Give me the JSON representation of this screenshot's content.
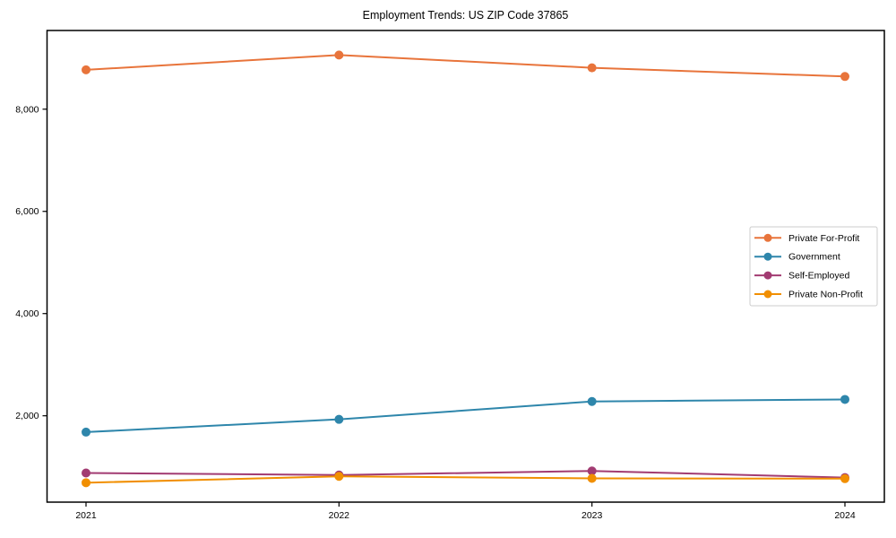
{
  "page": {
    "background": "#ffffff"
  },
  "chart_data": {
    "type": "line",
    "title": "Employment Trends: US ZIP Code 37865",
    "xlabel": "",
    "ylabel": "",
    "categories": [
      "2021",
      "2022",
      "2023",
      "2024"
    ],
    "series": [
      {
        "name": "Private For-Profit",
        "color": "#E8743B",
        "values": [
          8770,
          9060,
          8810,
          8640
        ]
      },
      {
        "name": "Government",
        "color": "#2E86AB",
        "values": [
          1680,
          1930,
          2280,
          2320
        ]
      },
      {
        "name": "Self-Employed",
        "color": "#A23B72",
        "values": [
          880,
          840,
          920,
          790
        ]
      },
      {
        "name": "Private Non-Profit",
        "color": "#F18F01",
        "values": [
          690,
          815,
          775,
          770
        ]
      }
    ],
    "ylim": [
      310,
      9540
    ],
    "yticks": [
      2000,
      4000,
      6000,
      8000
    ],
    "ytick_labels": [
      "2,000",
      "4,000",
      "6,000",
      "8,000"
    ],
    "grid": false,
    "marker": "circle",
    "line_width": 2,
    "marker_radius": 5,
    "axis_color": "#000000",
    "tick_label_color": "#000000",
    "legend": {
      "position": "center-right",
      "background": "#ffffff",
      "border_color": "#cccccc"
    }
  }
}
